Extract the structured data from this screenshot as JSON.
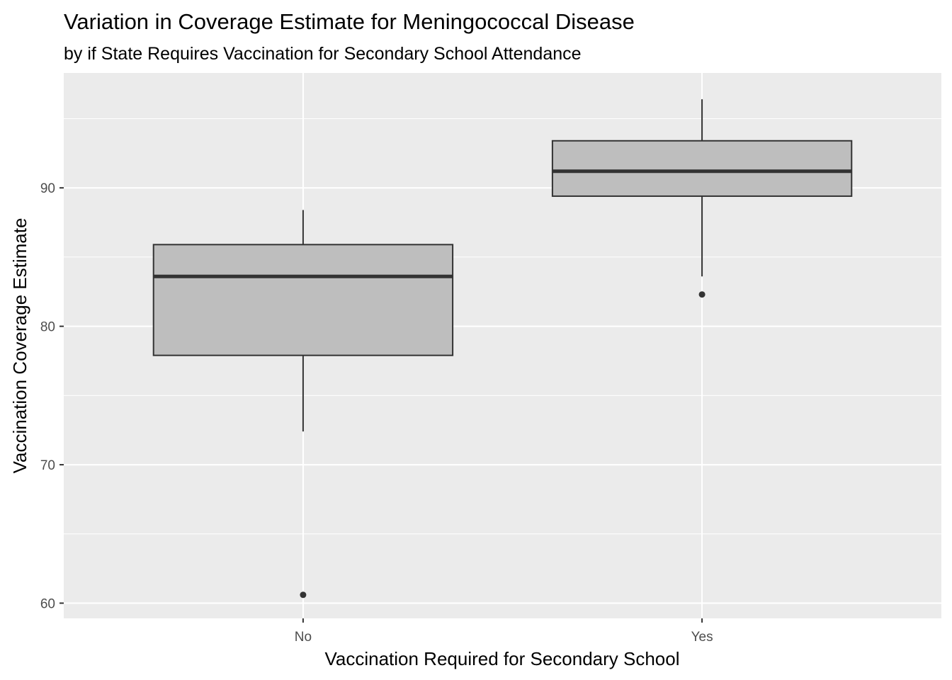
{
  "chart_data": {
    "type": "boxplot",
    "title": "Variation in Coverage Estimate for Meningococcal Disease",
    "subtitle": "by if State Requires Vaccination for Secondary School Attendance",
    "xlabel": "Vaccination Required for Secondary School",
    "ylabel": "Vaccination Coverage Estimate",
    "categories": [
      "No",
      "Yes"
    ],
    "ylim": [
      58.9,
      98.3
    ],
    "y_ticks": [
      60,
      70,
      80,
      90
    ],
    "y_tick_labels": [
      "60",
      "70",
      "80",
      "90"
    ],
    "grid": true,
    "boxes": [
      {
        "category": "No",
        "whisker_low": 72.4,
        "q1": 77.9,
        "median": 83.6,
        "q3": 85.9,
        "whisker_high": 88.4,
        "outliers": [
          60.6
        ]
      },
      {
        "category": "Yes",
        "whisker_low": 83.6,
        "q1": 89.4,
        "median": 91.2,
        "q3": 93.4,
        "whisker_high": 96.4,
        "outliers": [
          82.3
        ]
      }
    ],
    "box_fill": "#bebebe",
    "box_stroke": "#333333",
    "panel_background": "#ebebeb",
    "grid_color": "#ffffff"
  }
}
